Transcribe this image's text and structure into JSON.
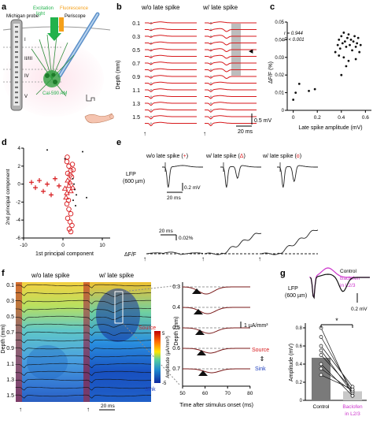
{
  "panel_labels": {
    "a": "a",
    "b": "b",
    "c": "c",
    "d": "d",
    "e": "e",
    "f": "f",
    "g": "g"
  },
  "colors": {
    "red": "#d7191c",
    "green": "#22b24c",
    "orange": "#f5a01a",
    "magenta": "#cc33cc",
    "gray": "#bdbdbd",
    "black": "#111111"
  },
  "panel_a": {
    "probe": "Michigan probe",
    "excitation": "Excitation",
    "light": "light",
    "fluorescence": "Fluorescence",
    "periscope": "Periscope",
    "layers": [
      "I",
      "II/III",
      "IV",
      "V"
    ],
    "dye": "Cal-590 AM"
  },
  "panel_b": {
    "titles": [
      "w/o late spike",
      "w/ late spike"
    ],
    "ylabel": "Depth (mm)",
    "depth_ticks": [
      "0.1",
      "0.3",
      "0.5",
      "0.7",
      "0.9",
      "1.1",
      "1.3",
      "1.5"
    ],
    "scale_v": "0.5 mV",
    "scale_t": "20 ms",
    "stim": "↑",
    "marker": "◀"
  },
  "panel_c": {
    "stat_r": "r = 0.944",
    "stat_p": "P < 0.001",
    "ylabel": "ΔF/F (%)",
    "xlabel": "Late spike amplitude (mV)",
    "xticks": [
      "0",
      "0.2",
      "0.4",
      "0.6"
    ],
    "yticks": [
      "0",
      "0.01",
      "0.02",
      "0.03",
      "0.04",
      "0.05"
    ]
  },
  "panel_d": {
    "ylabel": "2nd principal component",
    "xlabel": "1st principal component",
    "xticks": [
      "-10",
      "0",
      "10"
    ],
    "yticks": [
      "-6",
      "-4",
      "-2",
      "0",
      "2",
      "4"
    ]
  },
  "panel_e": {
    "titles": [
      "w/o late spike (",
      "w/ late spike (",
      "w/ late spike ("
    ],
    "symbols": [
      "+",
      "Δ",
      "o"
    ],
    "close": ")",
    "lfp_label": "LFP",
    "lfp_depth": "(600 µm)",
    "scale_v": "0.2 mV",
    "scale_t1": "20 ms",
    "scale_t2": "20 ms",
    "scale_pct": "0.02%",
    "dff": "ΔF/F"
  },
  "panel_f": {
    "titles": [
      "w/o late spike",
      "w/ late spike"
    ],
    "ylabel": "Depth (mm)",
    "depth_ticks": [
      "0.1",
      "0.3",
      "0.5",
      "0.7",
      "0.9",
      "1.1",
      "1.3",
      "1.5"
    ],
    "scale_t": "20 ms",
    "colorbar_max": "5",
    "colorbar_min": "-5",
    "colorbar_label": "Amplitude (µA/mm³)",
    "source": "Source",
    "sink": "Sink",
    "zoom_depths": [
      "0.3",
      "0.4",
      "0.5",
      "0.6",
      "0.7"
    ],
    "zoom_xlabel": "Time after stimulus onset (ms)",
    "zoom_xticks": [
      "50",
      "60",
      "70",
      "80"
    ],
    "zoom_ylabel": "Depth (mm)",
    "zoom_scale": "1 µA/mm³",
    "legend_source": "Source",
    "legend_sink": "Sink"
  },
  "panel_g": {
    "legend_control": "Control",
    "legend_baclofen_1": "Baclofen",
    "legend_baclofen_2": "in L2/3",
    "lfp_label": "LFP",
    "lfp_depth": "(600 µm)",
    "scale_v": "0.2 mV",
    "ylabel": "Amplitude (mV)",
    "yticks": [
      "0",
      "0.2",
      "0.4",
      "0.6",
      "0.8"
    ],
    "x_control": "Control",
    "x_baclofen_1": "Baclofen",
    "x_baclofen_2": "in L2/3",
    "sig": "*"
  },
  "chart_data": [
    {
      "type": "scatter",
      "panel": "c",
      "xlabel": "Late spike amplitude (mV)",
      "ylabel": "ΔF/F (%)",
      "xlim": [
        -0.05,
        0.65
      ],
      "ylim": [
        0,
        0.05
      ],
      "annotations": [
        "r = 0.944",
        "P < 0.001"
      ],
      "points": [
        [
          0.0,
          0.006
        ],
        [
          0.02,
          0.01
        ],
        [
          0.05,
          0.015
        ],
        [
          0.13,
          0.011
        ],
        [
          0.18,
          0.012
        ],
        [
          0.35,
          0.033
        ],
        [
          0.37,
          0.037
        ],
        [
          0.38,
          0.04
        ],
        [
          0.39,
          0.035
        ],
        [
          0.4,
          0.042
        ],
        [
          0.41,
          0.038
        ],
        [
          0.42,
          0.044
        ],
        [
          0.43,
          0.039
        ],
        [
          0.44,
          0.036
        ],
        [
          0.45,
          0.041
        ],
        [
          0.46,
          0.043
        ],
        [
          0.47,
          0.037
        ],
        [
          0.48,
          0.04
        ],
        [
          0.49,
          0.034
        ],
        [
          0.5,
          0.039
        ],
        [
          0.51,
          0.042
        ],
        [
          0.52,
          0.036
        ],
        [
          0.53,
          0.038
        ],
        [
          0.54,
          0.041
        ],
        [
          0.55,
          0.033
        ],
        [
          0.56,
          0.037
        ],
        [
          0.42,
          0.03
        ],
        [
          0.46,
          0.028
        ],
        [
          0.44,
          0.025
        ],
        [
          0.38,
          0.031
        ],
        [
          0.52,
          0.029
        ],
        [
          0.4,
          0.02
        ]
      ]
    },
    {
      "type": "scatter",
      "panel": "d",
      "xlabel": "1st principal component",
      "ylabel": "2nd principal component",
      "xlim": [
        -10,
        12
      ],
      "ylim": [
        -6,
        4
      ],
      "series": [
        {
          "marker": "+",
          "points": [
            [
              -8,
              0.2
            ],
            [
              -7,
              -0.4
            ],
            [
              -6,
              0.4
            ],
            [
              -5,
              -0.8
            ],
            [
              -4,
              0.0
            ],
            [
              -3,
              -1.2
            ],
            [
              -2,
              0.6
            ],
            [
              -1,
              -0.2
            ]
          ]
        },
        {
          "marker": "Δ",
          "points": [
            [
              0.5,
              -0.5
            ],
            [
              1.0,
              -1.0
            ],
            [
              1.5,
              -0.2
            ],
            [
              2.0,
              -0.8
            ],
            [
              1.2,
              0.4
            ],
            [
              0.8,
              -1.5
            ],
            [
              1.8,
              0.2
            ],
            [
              2.5,
              -0.4
            ]
          ]
        },
        {
          "marker": "o",
          "points": [
            [
              1,
              2.5
            ],
            [
              1.5,
              2.0
            ],
            [
              2,
              1.5
            ],
            [
              1.2,
              1.2
            ],
            [
              1.8,
              1.0
            ],
            [
              2.2,
              0.8
            ],
            [
              1.0,
              -2.2
            ],
            [
              1.5,
              -2.8
            ],
            [
              2.0,
              -3.3
            ],
            [
              1.2,
              -3.8
            ],
            [
              1.8,
              -4.2
            ],
            [
              2.3,
              -4.6
            ],
            [
              1.6,
              -5.0
            ],
            [
              2.0,
              -5.3
            ],
            [
              1.4,
              -1.8
            ],
            [
              2.4,
              2.2
            ],
            [
              1.1,
              3.0
            ],
            [
              2.6,
              1.6
            ]
          ]
        },
        {
          "marker": "dot",
          "points": [
            [
              -4,
              3.8
            ],
            [
              5,
              3.6
            ],
            [
              2.5,
              0.6
            ],
            [
              3.0,
              -0.6
            ],
            [
              2.8,
              0.0
            ],
            [
              3.4,
              -1.2
            ],
            [
              2.6,
              -1.8
            ],
            [
              3.2,
              -2.4
            ],
            [
              0.5,
              2.8
            ],
            [
              6.0,
              -1.5
            ]
          ]
        }
      ]
    },
    {
      "type": "bar",
      "panel": "g",
      "categories": [
        "Control",
        "Baclofen in L2/3"
      ],
      "values": [
        0.47,
        0.1
      ],
      "ylabel": "Amplitude (mV)",
      "ylim": [
        0,
        0.8
      ],
      "pairs": [
        [
          0.8,
          0.05
        ],
        [
          0.7,
          0.1
        ],
        [
          0.6,
          0.15
        ],
        [
          0.55,
          0.08
        ],
        [
          0.5,
          0.12
        ],
        [
          0.4,
          0.05
        ],
        [
          0.35,
          0.1
        ],
        [
          0.28,
          0.12
        ]
      ]
    }
  ]
}
